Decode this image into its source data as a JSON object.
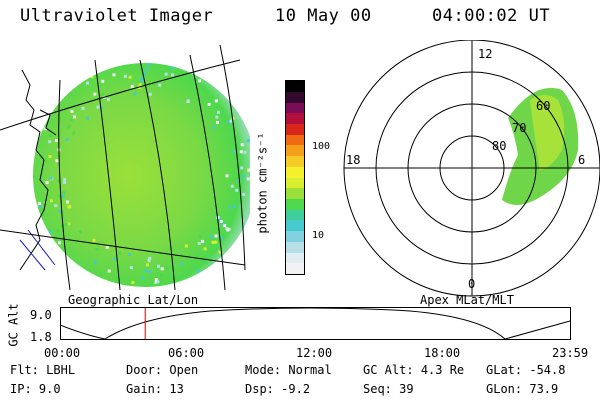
{
  "header": {
    "instrument": "Ultraviolet Imager",
    "date": "10 May 00",
    "time": "04:00:02 UT"
  },
  "left_panel": {
    "label": "Geographic Lat/Lon"
  },
  "right_panel": {
    "label": "Apex MLat/MLT",
    "mlt_labels": [
      "12",
      "18",
      "6",
      "0"
    ],
    "lat_labels": [
      "60",
      "70",
      "80"
    ]
  },
  "colorbar": {
    "unit_label": "photon cm⁻²s⁻¹",
    "ticks": [
      "100",
      "10"
    ],
    "colors": [
      "#f2f2f2",
      "#e0eef4",
      "#b7dfe6",
      "#7fd1e0",
      "#46c9cf",
      "#3fcf9a",
      "#4ed84d",
      "#9be03a",
      "#d8ef31",
      "#f5f02c",
      "#f5cc27",
      "#f59f1a",
      "#f06a13",
      "#d9261a",
      "#b30f3c",
      "#7a0d55",
      "#330a2e",
      "#000000"
    ]
  },
  "orbit_plot": {
    "ylabel": "GC Alt",
    "y_ticks": [
      "9.0",
      "1.8"
    ],
    "x_ticks": [
      "00:00",
      "06:00",
      "12:00",
      "18:00",
      "23:59"
    ],
    "current_time_fraction": 0.167
  },
  "status": {
    "flt_label": "Flt:",
    "flt_value": "LBHL",
    "ip_label": "IP:",
    "ip_value": "9.0",
    "door_label": "Door:",
    "door_value": "Open",
    "gain_label": "Gain:",
    "gain_value": "13",
    "mode_label": "Mode:",
    "mode_value": "Normal",
    "dsp_label": "Dsp:",
    "dsp_value": "-9.2",
    "gcalt_label": "GC Alt:",
    "gcalt_value": "4.3 Re",
    "seq_label": "Seq:",
    "seq_value": "39",
    "glat_label": "GLat:",
    "glat_value": "-54.8",
    "glon_label": "GLon:",
    "glon_value": "73.9"
  }
}
